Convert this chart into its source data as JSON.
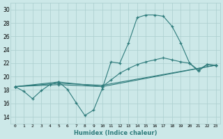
{
  "xlabel": "Humidex (Indice chaleur)",
  "ylabel": "",
  "xlim": [
    -0.5,
    23.5
  ],
  "ylim": [
    13,
    31
  ],
  "yticks": [
    14,
    16,
    18,
    20,
    22,
    24,
    26,
    28,
    30
  ],
  "xticks": [
    0,
    1,
    2,
    3,
    4,
    5,
    6,
    7,
    8,
    9,
    10,
    11,
    12,
    13,
    14,
    15,
    16,
    17,
    18,
    19,
    20,
    21,
    22,
    23
  ],
  "xtick_labels": [
    "0",
    "1",
    "2",
    "3",
    "4",
    "5",
    "6",
    "7",
    "8",
    "9",
    "10",
    "11",
    "12",
    "13",
    "14",
    "15",
    "16",
    "17",
    "18",
    "19",
    "20",
    "21",
    "22",
    "23"
  ],
  "bg_color": "#cce8e8",
  "grid_color": "#aacece",
  "line_color": "#2e7b7b",
  "line1_x": [
    0,
    1,
    2,
    3,
    4,
    5,
    6,
    7,
    8,
    9,
    10,
    11,
    12,
    13,
    14,
    15,
    16,
    17,
    18,
    19,
    20,
    21,
    22,
    23
  ],
  "line1_y": [
    18.5,
    17.8,
    16.7,
    17.9,
    18.8,
    19.2,
    18.1,
    16.1,
    14.2,
    15.0,
    18.2,
    22.2,
    22.0,
    25.0,
    28.8,
    29.2,
    29.2,
    29.0,
    27.5,
    25.0,
    22.0,
    21.0,
    21.8,
    21.7
  ],
  "line2_x": [
    0,
    5,
    10,
    11,
    12,
    13,
    14,
    15,
    16,
    17,
    18,
    19,
    20,
    21,
    22,
    23
  ],
  "line2_y": [
    18.5,
    19.2,
    18.5,
    19.5,
    20.5,
    21.2,
    21.8,
    22.2,
    22.5,
    22.8,
    22.5,
    22.2,
    22.0,
    20.8,
    21.8,
    21.7
  ],
  "line3_x": [
    0,
    5,
    10,
    23
  ],
  "line3_y": [
    18.5,
    19.0,
    18.7,
    21.7
  ],
  "line4_x": [
    0,
    5,
    10,
    23
  ],
  "line4_y": [
    18.5,
    18.8,
    18.5,
    21.7
  ]
}
